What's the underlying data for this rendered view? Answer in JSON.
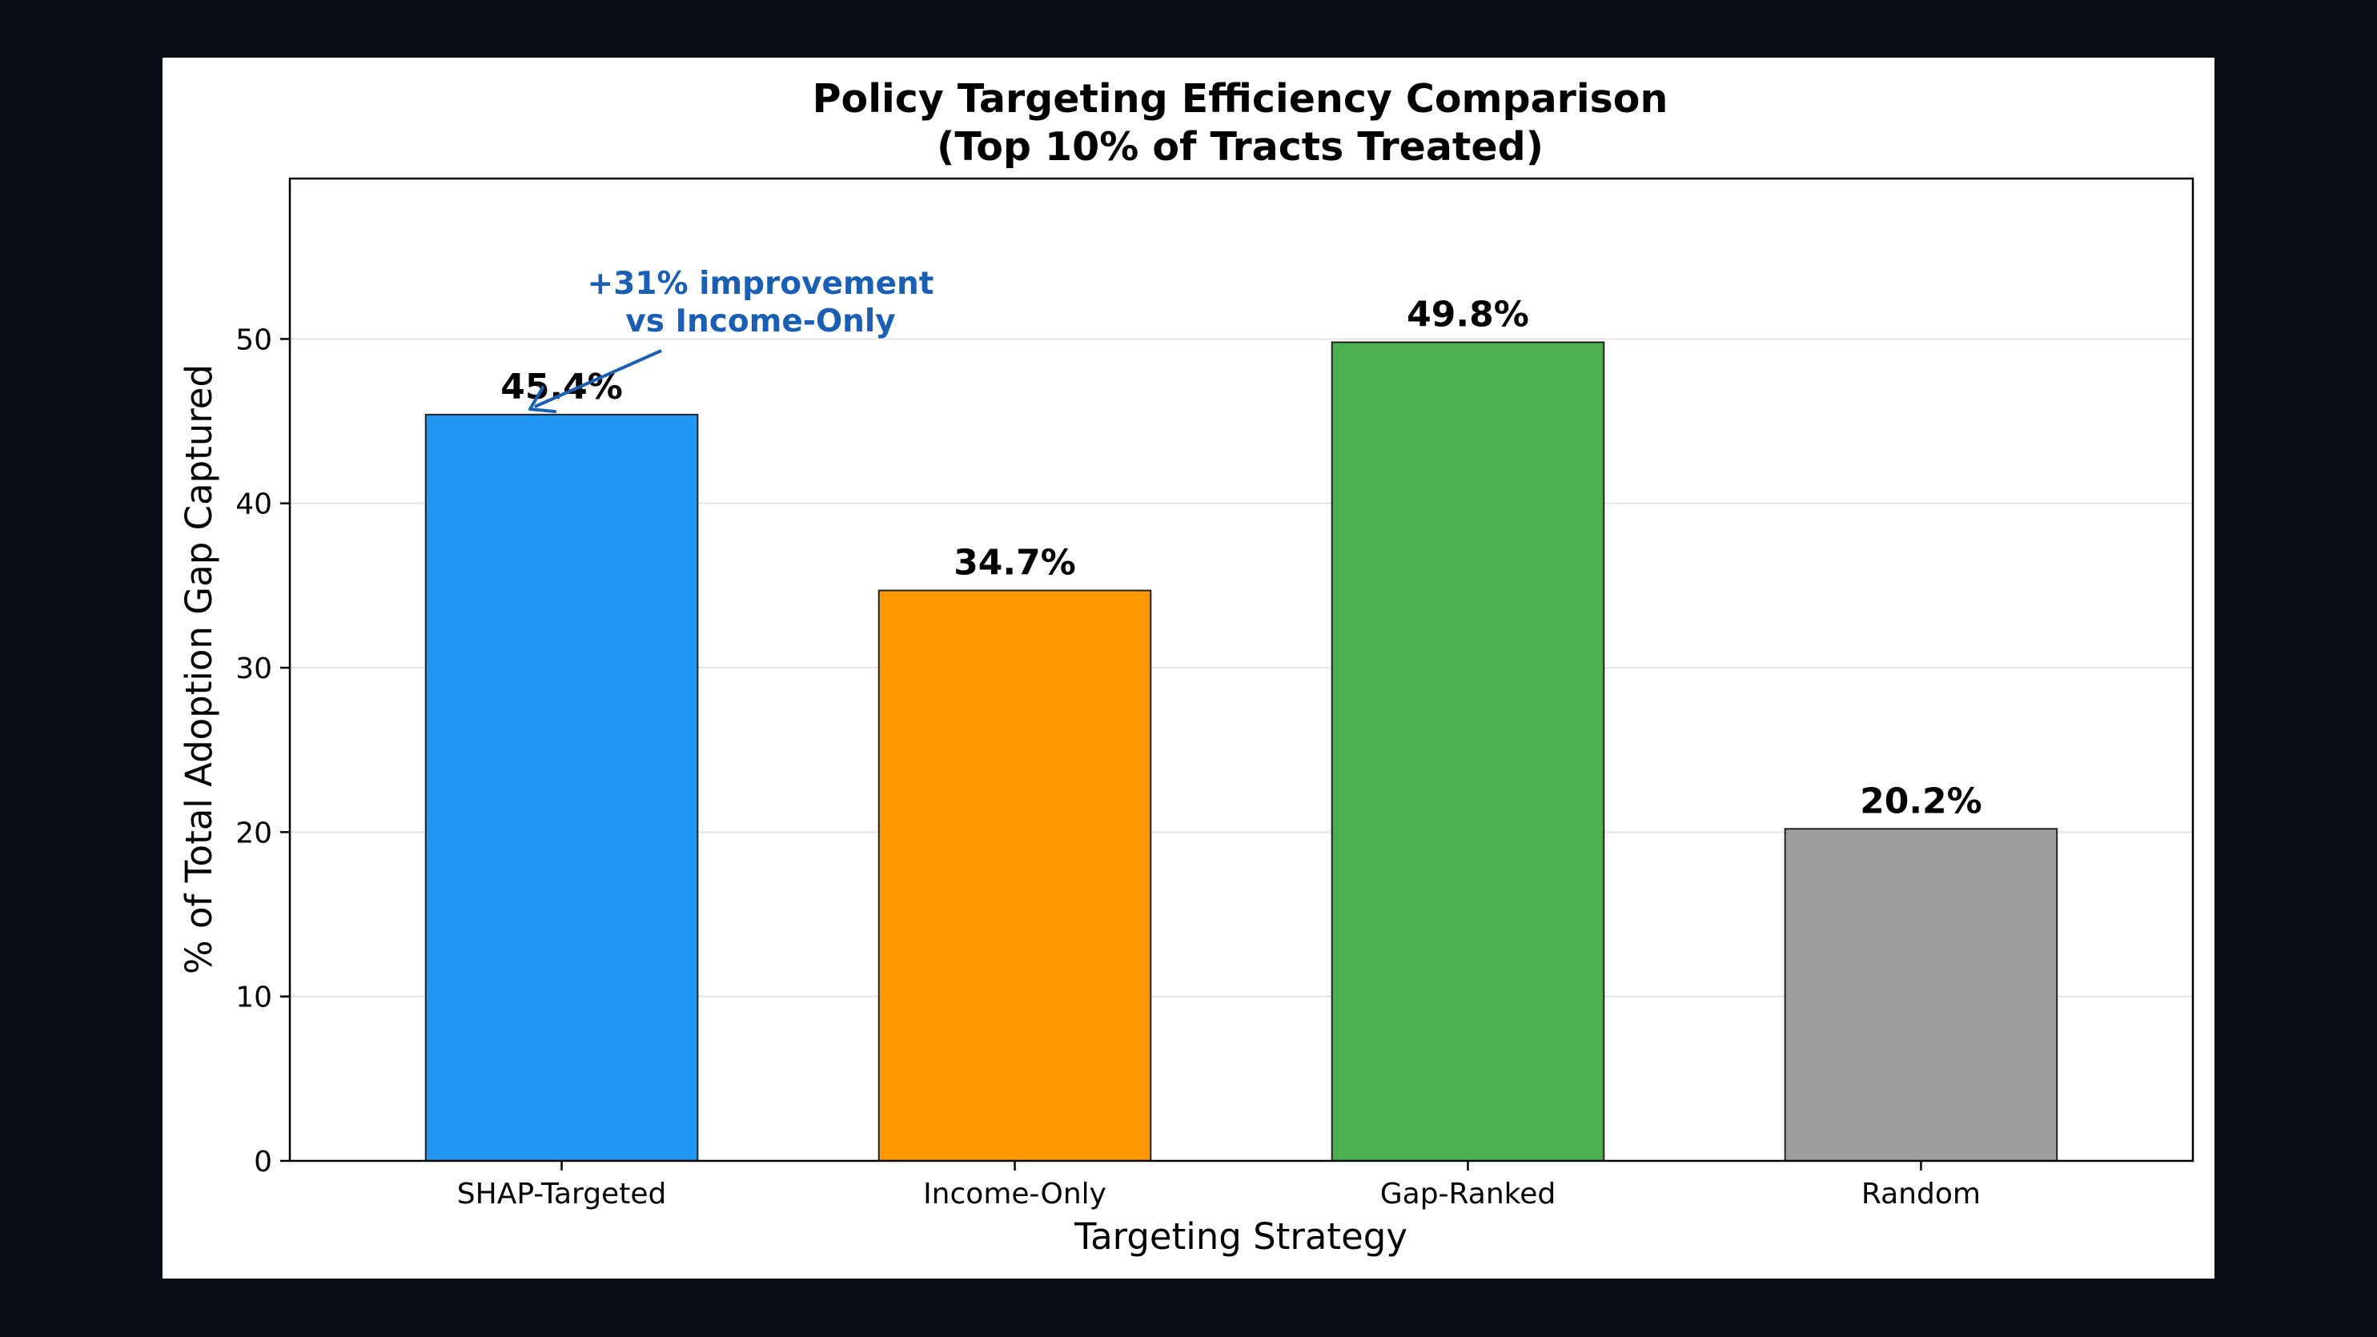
{
  "chart_data": {
    "type": "bar",
    "title_line1": "Policy Targeting Efficiency Comparison",
    "title_line2": "(Top 10% of Tracts Treated)",
    "xlabel": "Targeting Strategy",
    "ylabel": "% of Total Adoption Gap Captured",
    "categories": [
      "SHAP-Targeted",
      "Income-Only",
      "Gap-Ranked",
      "Random"
    ],
    "values": [
      45.4,
      34.7,
      49.8,
      20.2
    ],
    "value_labels": [
      "45.4%",
      "34.7%",
      "49.8%",
      "20.2%"
    ],
    "colors": [
      "#2196F3",
      "#FF9800",
      "#4CAF50",
      "#9E9E9E"
    ],
    "ylim": [
      0,
      59.76
    ],
    "yticks": [
      0,
      10,
      20,
      30,
      40,
      50
    ],
    "grid": "y",
    "annotation": {
      "line1": "+31% improvement",
      "line2": "vs Income-Only",
      "color": "#1a5fb4",
      "target_category": "SHAP-Targeted"
    }
  }
}
